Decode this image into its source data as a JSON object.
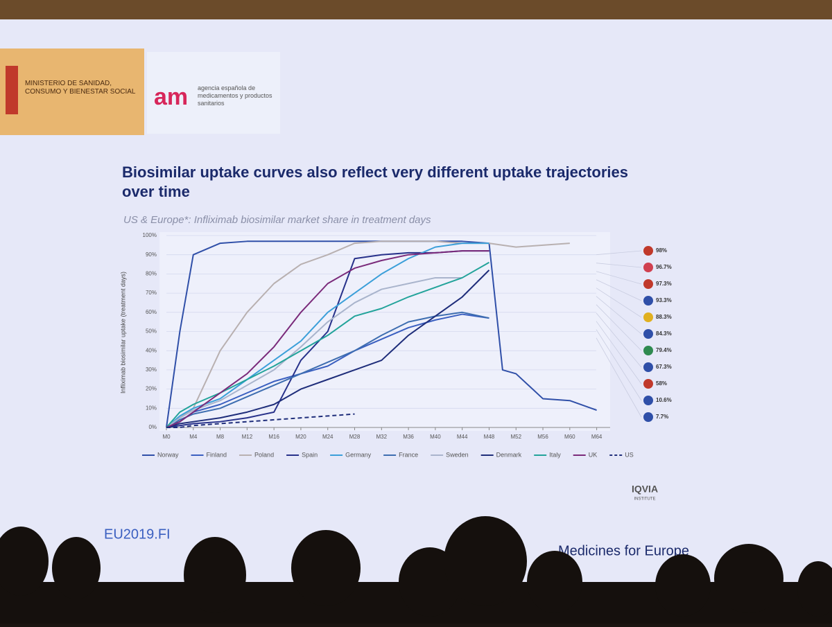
{
  "header": {
    "ministry": "MINISTERIO DE SANIDAD, CONSUMO Y BIENESTAR SOCIAL",
    "agency": "agencia española de medicamentos y productos sanitarios"
  },
  "chart_data": {
    "type": "line",
    "title": "Biosimilar uptake curves also reflect very different uptake trajectories over time",
    "subtitle": "US & Europe*: Infliximab biosimilar market share in treatment days",
    "y_label": "Infliximab biosimilar uptake (treatment days)",
    "x": [
      0,
      2,
      4,
      8,
      12,
      16,
      20,
      24,
      28,
      32,
      36,
      40,
      44,
      48,
      50,
      52,
      56,
      60,
      64
    ],
    "xlim": [
      0,
      66
    ],
    "ylim": [
      0,
      100
    ],
    "xticks": [
      {
        "value": 0,
        "label": "M0"
      },
      {
        "value": 4,
        "label": "M4"
      },
      {
        "value": 8,
        "label": "M8"
      },
      {
        "value": 12,
        "label": "M12"
      },
      {
        "value": 16,
        "label": "M16"
      },
      {
        "value": 20,
        "label": "M20"
      },
      {
        "value": 24,
        "label": "M24"
      },
      {
        "value": 28,
        "label": "M28"
      },
      {
        "value": 32,
        "label": "M32"
      },
      {
        "value": 36,
        "label": "M36"
      },
      {
        "value": 40,
        "label": "M40"
      },
      {
        "value": 44,
        "label": "M44"
      },
      {
        "value": 48,
        "label": "M48"
      },
      {
        "value": 52,
        "label": "M52"
      },
      {
        "value": 56,
        "label": "M56"
      },
      {
        "value": 60,
        "label": "M60"
      },
      {
        "value": 64,
        "label": "M64"
      }
    ],
    "yticks": [
      {
        "value": 0,
        "label": "0%"
      },
      {
        "value": 10,
        "label": "10%"
      },
      {
        "value": 20,
        "label": "20%"
      },
      {
        "value": 30,
        "label": "30%"
      },
      {
        "value": 40,
        "label": "40%"
      },
      {
        "value": 50,
        "label": "50%"
      },
      {
        "value": 60,
        "label": "60%"
      },
      {
        "value": 70,
        "label": "70%"
      },
      {
        "value": 80,
        "label": "80%"
      },
      {
        "value": 90,
        "label": "90%"
      },
      {
        "value": 100,
        "label": "100%"
      }
    ],
    "series": [
      {
        "name": "Norway",
        "color": "#2f4fa8",
        "values": [
          0,
          50,
          90,
          96,
          97,
          97,
          97,
          97,
          97,
          97,
          97,
          97,
          97,
          96,
          30,
          28,
          15,
          14,
          9
        ]
      },
      {
        "name": "Finland",
        "color": "#3a5fc0",
        "values": [
          0,
          3,
          8,
          12,
          18,
          24,
          28,
          32,
          40,
          46,
          52,
          56,
          59,
          57,
          null,
          null,
          null,
          null,
          null
        ]
      },
      {
        "name": "Poland",
        "color": "#b8b0b0",
        "values": [
          0,
          5,
          10,
          40,
          60,
          75,
          85,
          90,
          96,
          97,
          97,
          97,
          96,
          96,
          95,
          94,
          95,
          96,
          null
        ]
      },
      {
        "name": "Spain",
        "color": "#27318a",
        "values": [
          0,
          1,
          2,
          3,
          5,
          8,
          35,
          50,
          88,
          90,
          91,
          91,
          92,
          92,
          null,
          null,
          null,
          null,
          null
        ]
      },
      {
        "name": "Germany",
        "color": "#3b9fd9",
        "values": [
          0,
          6,
          10,
          15,
          25,
          35,
          45,
          60,
          70,
          80,
          88,
          94,
          96,
          96,
          null,
          null,
          null,
          null,
          null
        ]
      },
      {
        "name": "France",
        "color": "#3d6db0",
        "values": [
          0,
          4,
          7,
          10,
          16,
          22,
          28,
          34,
          40,
          48,
          55,
          58,
          60,
          57,
          null,
          null,
          null,
          null,
          null
        ]
      },
      {
        "name": "Sweden",
        "color": "#a9b4cc",
        "values": [
          0,
          5,
          9,
          14,
          22,
          30,
          42,
          55,
          65,
          72,
          75,
          78,
          78,
          null,
          null,
          null,
          null,
          null,
          null
        ]
      },
      {
        "name": "Denmark",
        "color": "#1e2d7a",
        "values": [
          0,
          2,
          3,
          5,
          8,
          12,
          20,
          25,
          30,
          35,
          48,
          58,
          68,
          82,
          null,
          null,
          null,
          null,
          null
        ]
      },
      {
        "name": "Italy",
        "color": "#22a39a",
        "values": [
          0,
          8,
          12,
          18,
          25,
          32,
          40,
          48,
          58,
          62,
          68,
          73,
          78,
          86,
          null,
          null,
          null,
          null,
          null
        ]
      },
      {
        "name": "UK",
        "color": "#7a2a7a",
        "values": [
          0,
          3,
          8,
          18,
          28,
          42,
          60,
          75,
          83,
          87,
          90,
          91,
          92,
          92,
          null,
          null,
          null,
          null,
          null
        ]
      },
      {
        "name": "US",
        "color": "#1e2d7a",
        "dashed": true,
        "values": [
          0,
          0,
          1,
          2,
          3,
          4,
          5,
          6,
          7,
          null,
          null,
          null,
          null,
          null,
          null,
          null,
          null,
          null,
          null
        ]
      }
    ],
    "end_labels": [
      "98%",
      "96.7%",
      "97.3%",
      "93.3%",
      "88.3%",
      "84.3%",
      "79.4%",
      "67.3%",
      "58%",
      "10.6%",
      "7.7%"
    ],
    "source": "IQVIA",
    "source_sub": "INSTITUTE"
  },
  "footer": {
    "event": "EU2019.FI",
    "organizer": "Medicines for Europe"
  }
}
